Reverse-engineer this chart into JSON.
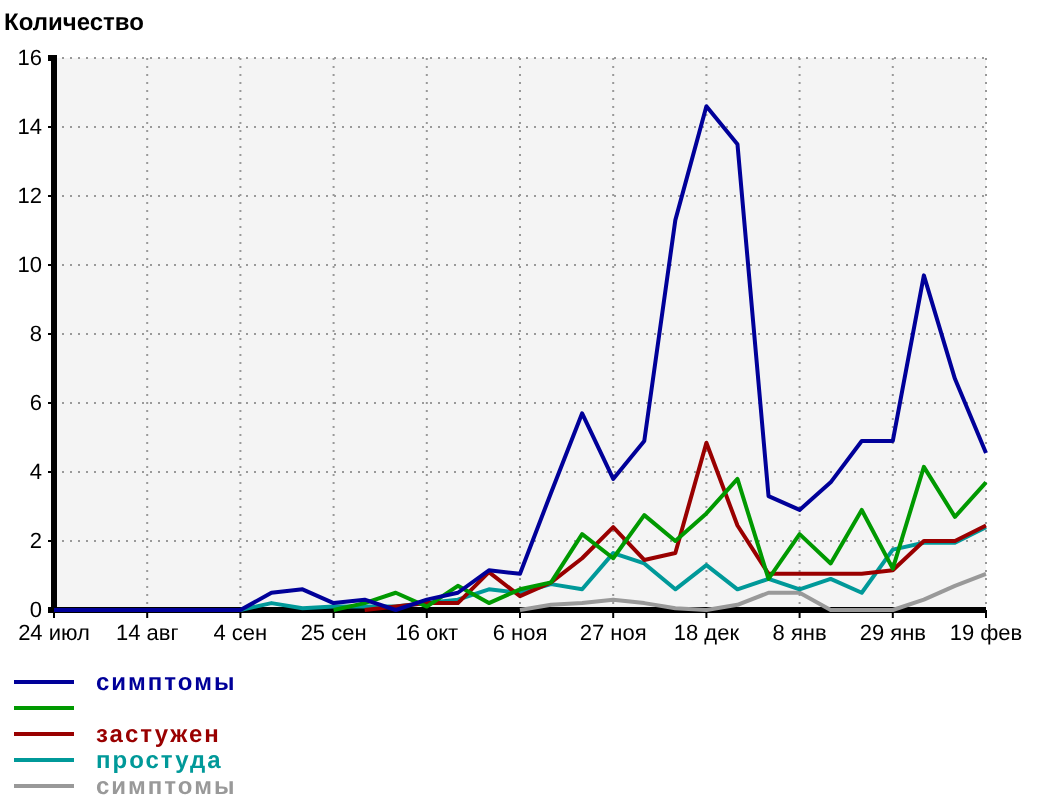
{
  "chart_data": {
    "type": "line",
    "ylabel": "Количество",
    "categories": [
      "24 июл",
      null,
      null,
      "14 авг",
      null,
      null,
      "4 сен",
      null,
      null,
      "25 сен",
      null,
      null,
      "16 окт",
      null,
      null,
      "6 ноя",
      null,
      null,
      "27 ноя",
      null,
      null,
      "18 дек",
      null,
      null,
      "8 янв",
      null,
      null,
      "29 янв",
      null,
      null,
      "19 фев"
    ],
    "ylim": [
      0,
      16
    ],
    "yticks": [
      0,
      2,
      4,
      6,
      8,
      10,
      12,
      14,
      16
    ],
    "grid": true,
    "legend": "bottom",
    "marker": "none",
    "line_style": "solid",
    "series": [
      {
        "name": "симптомы",
        "color": "#000099",
        "values": [
          0,
          0,
          0,
          0,
          0,
          0,
          0,
          0.5,
          0.6,
          0.2,
          0.3,
          0,
          0.3,
          0.5,
          1.15,
          1.05,
          3.4,
          5.7,
          3.8,
          4.9,
          11.3,
          14.6,
          13.5,
          3.3,
          2.9,
          3.7,
          4.9,
          4.9,
          9.7,
          6.7,
          4.55
        ]
      },
      {
        "color": "#009900",
        "values": [
          null,
          null,
          null,
          null,
          null,
          null,
          null,
          null,
          null,
          0,
          0.2,
          0.5,
          0.1,
          0.7,
          0.2,
          0.6,
          0.8,
          2.2,
          1.5,
          2.75,
          2.0,
          2.8,
          3.8,
          0.9,
          2.2,
          1.35,
          2.9,
          1.2,
          4.15,
          2.7,
          3.7
        ]
      },
      {
        "name": "застужен",
        "color": "#990000",
        "values": [
          null,
          null,
          null,
          null,
          null,
          null,
          null,
          null,
          null,
          null,
          0,
          0.1,
          0.2,
          0.2,
          1.1,
          0.4,
          0.8,
          1.5,
          2.4,
          1.45,
          1.65,
          4.85,
          2.45,
          1.05,
          1.05,
          1.05,
          1.05,
          1.15,
          2.0,
          2.0,
          2.45
        ]
      },
      {
        "name": "простуда",
        "color": "#009999",
        "values": [
          null,
          null,
          null,
          null,
          null,
          null,
          0,
          0.2,
          0.05,
          0.1,
          0.1,
          0.1,
          0.2,
          0.3,
          0.6,
          0.5,
          0.75,
          0.6,
          1.65,
          1.35,
          0.6,
          1.3,
          0.6,
          0.9,
          0.6,
          0.9,
          0.5,
          1.75,
          1.95,
          1.95,
          2.4
        ]
      },
      {
        "name": "симптомы",
        "color": "#999999",
        "values": [
          null,
          null,
          null,
          null,
          null,
          null,
          null,
          null,
          null,
          null,
          null,
          null,
          null,
          null,
          null,
          0,
          0.15,
          0.2,
          0.3,
          0.2,
          0.05,
          0,
          0.15,
          0.5,
          0.5,
          0,
          0,
          0,
          0.3,
          0.7,
          1.05
        ]
      }
    ]
  }
}
